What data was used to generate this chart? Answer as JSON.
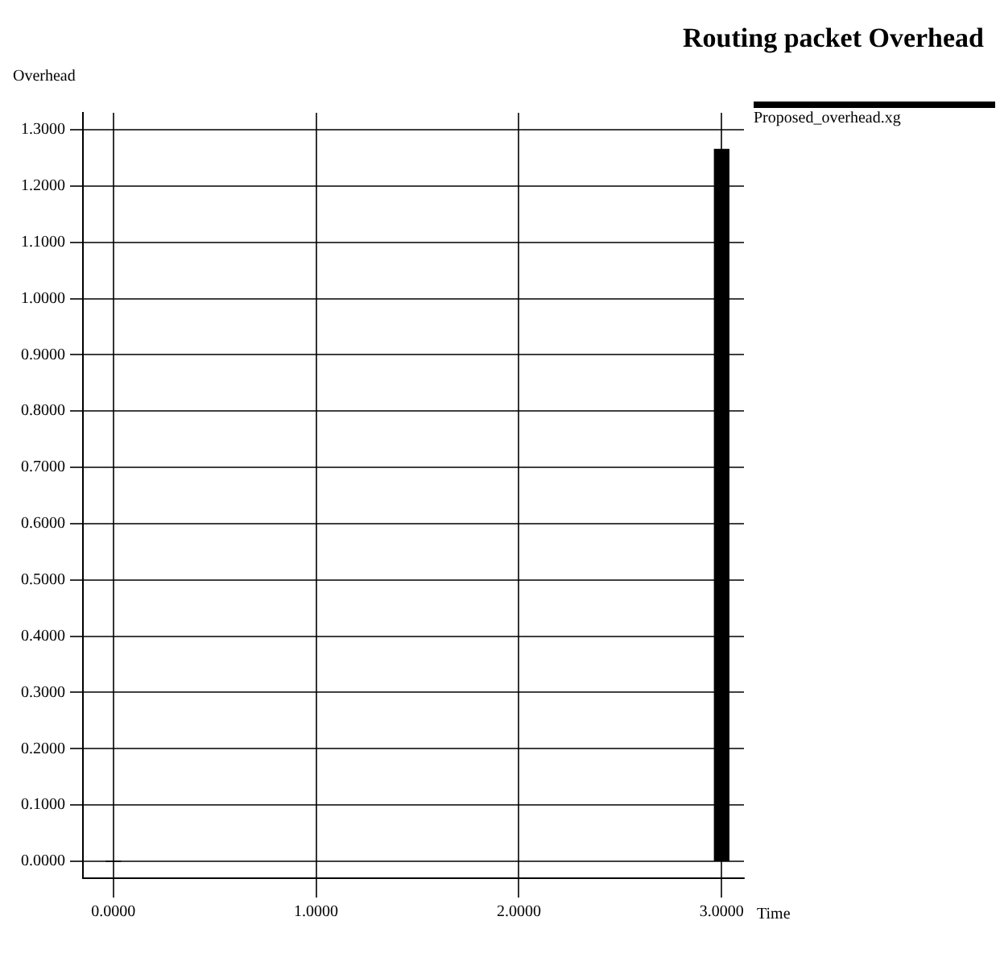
{
  "chart_data": {
    "type": "bar",
    "title": "Routing packet Overhead",
    "xlabel": "Time",
    "ylabel": "Overhead",
    "x": [
      0,
      3
    ],
    "series": [
      {
        "name": "Proposed_overhead.xg",
        "color": "#000000",
        "values": [
          0,
          1.265
        ]
      }
    ],
    "xlim": [
      -0.15,
      3.11
    ],
    "ylim": [
      -0.03,
      1.33
    ],
    "xticks": [
      {
        "value": 0,
        "label": "0.0000"
      },
      {
        "value": 1,
        "label": "1.0000"
      },
      {
        "value": 2,
        "label": "2.0000"
      },
      {
        "value": 3,
        "label": "3.0000"
      }
    ],
    "yticks": [
      {
        "value": 0,
        "label": "0.0000"
      },
      {
        "value": 0.1,
        "label": "0.1000"
      },
      {
        "value": 0.2,
        "label": "0.2000"
      },
      {
        "value": 0.3,
        "label": "0.3000"
      },
      {
        "value": 0.4,
        "label": "0.4000"
      },
      {
        "value": 0.5,
        "label": "0.5000"
      },
      {
        "value": 0.6,
        "label": "0.6000"
      },
      {
        "value": 0.7,
        "label": "0.7000"
      },
      {
        "value": 0.8,
        "label": "0.8000"
      },
      {
        "value": 0.9,
        "label": "0.9000"
      },
      {
        "value": 1,
        "label": "1.0000"
      },
      {
        "value": 1.1,
        "label": "1.1000"
      },
      {
        "value": 1.2,
        "label": "1.2000"
      },
      {
        "value": 1.3,
        "label": "1.3000"
      }
    ],
    "grid": true,
    "legend": "top right"
  }
}
